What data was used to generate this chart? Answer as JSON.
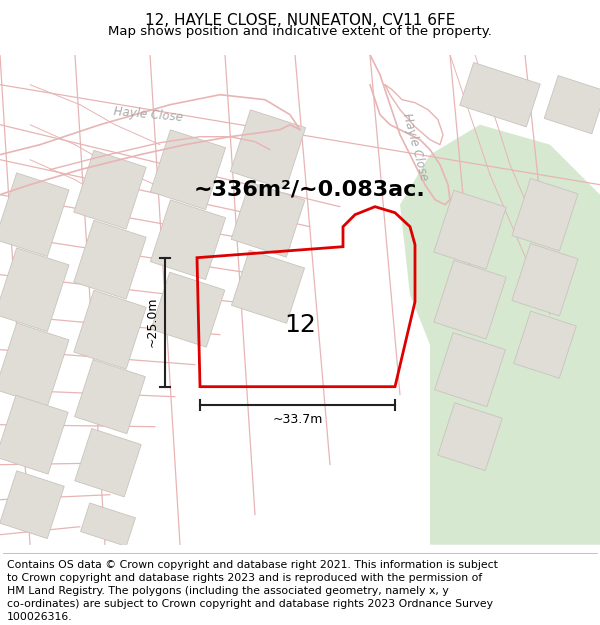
{
  "title": "12, HAYLE CLOSE, NUNEATON, CV11 6FE",
  "subtitle": "Map shows position and indicative extent of the property.",
  "area_text": "~336m²/~0.083ac.",
  "width_text": "~33.7m",
  "height_text": "~25.0m",
  "plot_number": "12",
  "bg_color": "#f2efeb",
  "building_color": "#e0dcd6",
  "building_outline": "#c8c4be",
  "grass_color": "#d6e8d0",
  "road_line_color": "#e8b4b4",
  "plot_outline_color": "#dd0000",
  "dim_color": "#222222",
  "hayle_close_color": "#aaaaaa",
  "footer_text_lines": [
    "Contains OS data © Crown copyright and database right 2021. This information is subject",
    "to Crown copyright and database rights 2023 and is reproduced with the permission of",
    "HM Land Registry. The polygons (including the associated geometry, namely x, y",
    "co-ordinates) are subject to Crown copyright and database rights 2023 Ordnance Survey",
    "100026316."
  ],
  "title_fontsize": 11,
  "subtitle_fontsize": 9.5,
  "area_fontsize": 16,
  "footer_fontsize": 7.8
}
